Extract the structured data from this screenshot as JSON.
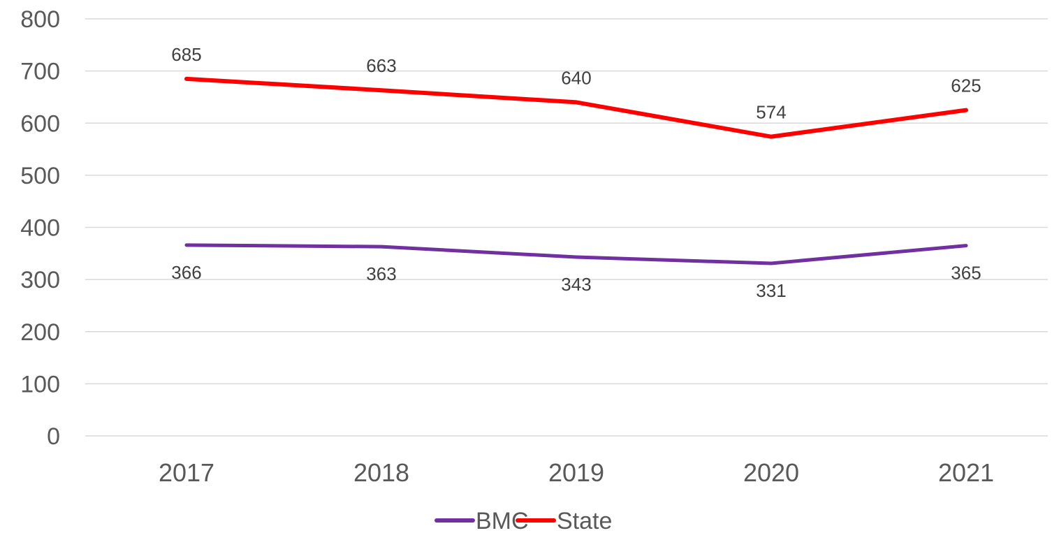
{
  "chart_data": {
    "type": "line",
    "categories": [
      "2017",
      "2018",
      "2019",
      "2020",
      "2021"
    ],
    "series": [
      {
        "name": "BMC",
        "values": [
          366,
          363,
          343,
          331,
          365
        ],
        "color": "#7030a0",
        "label_position": "below"
      },
      {
        "name": "State",
        "values": [
          685,
          663,
          640,
          574,
          625
        ],
        "color": "#ff0000",
        "label_position": "above"
      }
    ],
    "ylim": [
      0,
      800
    ],
    "yticks": [
      0,
      100,
      200,
      300,
      400,
      500,
      600,
      700,
      800
    ],
    "grid": true,
    "legend": "bottom-center",
    "title": "",
    "xlabel": "",
    "ylabel": ""
  }
}
